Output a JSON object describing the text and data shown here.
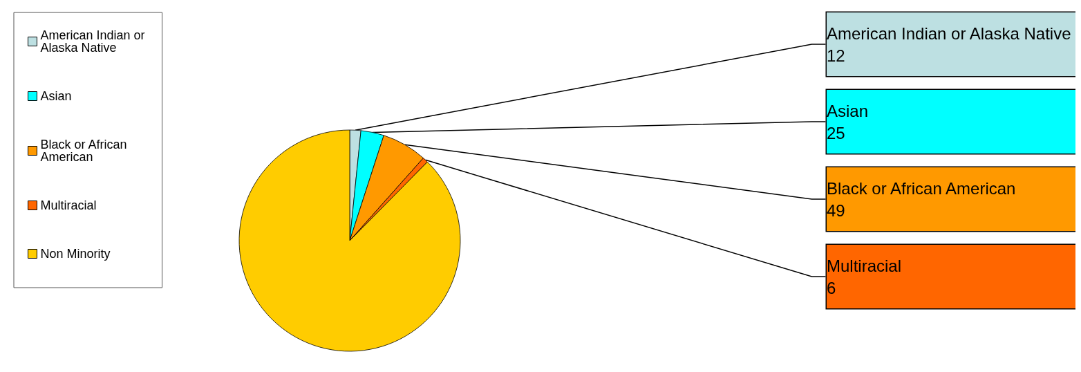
{
  "chart_data": {
    "type": "pie",
    "categories": [
      "American Indian or Alaska Native",
      "Asian",
      "Black or African American",
      "Multiracial",
      "Non Minority"
    ],
    "values": [
      12,
      25,
      49,
      6,
      650
    ],
    "value_labels": [
      "12",
      "25",
      "49",
      "6",
      null
    ],
    "colors": [
      "#bde0e2",
      "#00ffff",
      "#ff9900",
      "#ff6600",
      "#ffcc00"
    ],
    "legend": "left"
  }
}
